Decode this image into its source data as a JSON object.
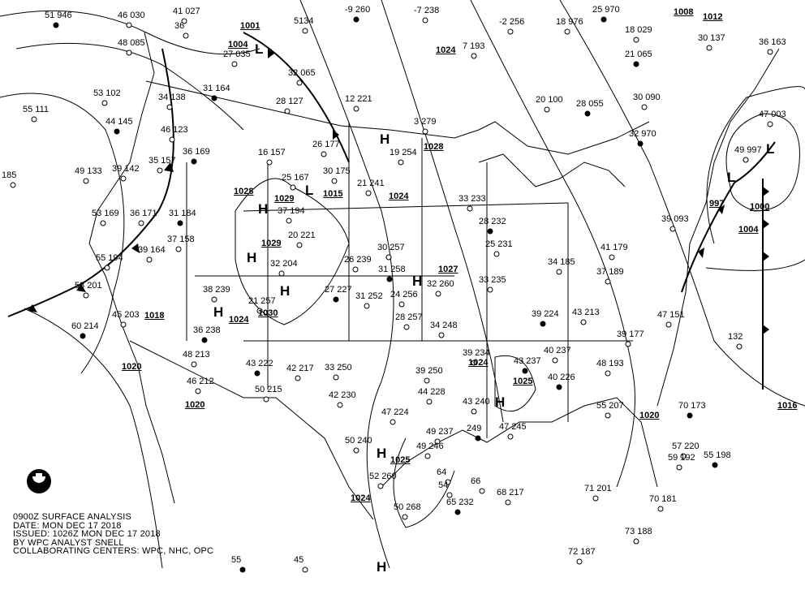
{
  "caption": {
    "title": "0900Z SURFACE ANALYSIS",
    "date": "DATE: MON DEC 17 2018",
    "issued": "ISSUED: 1026Z MON DEC 17 2018",
    "analyst": "BY WPC ANALYST SNELL",
    "centers": "COLLABORATING CENTERS: WPC, NHC, OPC"
  },
  "logo_text": "NOAA",
  "pressure_centers": [
    {
      "type": "H"
    },
    {
      "type": "H"
    },
    {
      "type": "H"
    },
    {
      "type": "H"
    },
    {
      "type": "H"
    },
    {
      "type": "H"
    },
    {
      "type": "H"
    },
    {
      "type": "H"
    },
    {
      "type": "H"
    },
    {
      "type": "L"
    },
    {
      "type": "L"
    },
    {
      "type": "L"
    },
    {
      "type": "L"
    }
  ],
  "isobar_labels": [
    "1001",
    "1004",
    "1008",
    "1012",
    "1015",
    "1029",
    "1028",
    "1029",
    "1028",
    "1024",
    "1027",
    "1018",
    "1024",
    "1030",
    "1020",
    "1020",
    "1024",
    "1025",
    "1025",
    "1024",
    "997",
    "1000",
    "1004",
    "1016",
    "1020",
    "1024"
  ],
  "stations": [
    "51 946",
    "46 030",
    "41 027",
    "36",
    "5134",
    "-9 260",
    "-7 238",
    "7 193",
    "-2 256",
    "18 976",
    "25 970",
    "18 029",
    "48 085",
    "27 035",
    "32 065",
    "21 065",
    "30 137",
    "36 163",
    "53 102",
    "34 138",
    "31 164",
    "28 127",
    "12 221",
    "3 279",
    "20 100",
    "28 055",
    "30 090",
    "47 003",
    "49 997",
    "55 111",
    "44 145",
    "46 123",
    "16 157",
    "26 177",
    "19 254",
    "32 970",
    "185",
    "49 133",
    "39 142",
    "35 157",
    "36 169",
    "25 167",
    "30 175",
    "21 241",
    "33 233",
    "28 232",
    "25 231",
    "41 179",
    "53 169",
    "36 171",
    "31 184",
    "37 194",
    "20 221",
    "26 239",
    "30 257",
    "31 258",
    "33 235",
    "34 185",
    "37 189",
    "39 093",
    "60 214",
    "55 194",
    "39 164",
    "37 158",
    "32 204",
    "27 227",
    "31 252",
    "24 256",
    "28 257",
    "32 260",
    "39 224",
    "43 213",
    "53 201",
    "45 203",
    "38 239",
    "36 238",
    "21 257",
    "34 248",
    "39 234",
    "40 237",
    "43 237",
    "48 193",
    "39 177",
    "47 151",
    "48 213",
    "43 222",
    "42 217",
    "33 250",
    "39 250",
    "44 228",
    "40 226",
    "47 224",
    "49 237",
    "50 240",
    "55 207",
    "70 173",
    "46 212",
    "50 215",
    "42 230",
    "43 240",
    "249",
    "47 245",
    "49 246",
    "57 220",
    "59 192",
    "55 198",
    "132",
    "70 181",
    "52 260",
    "50 268",
    "65 232",
    "68 217",
    "71 201",
    "73 188",
    "72 187",
    "55",
    "45",
    "64",
    "66",
    "54"
  ]
}
